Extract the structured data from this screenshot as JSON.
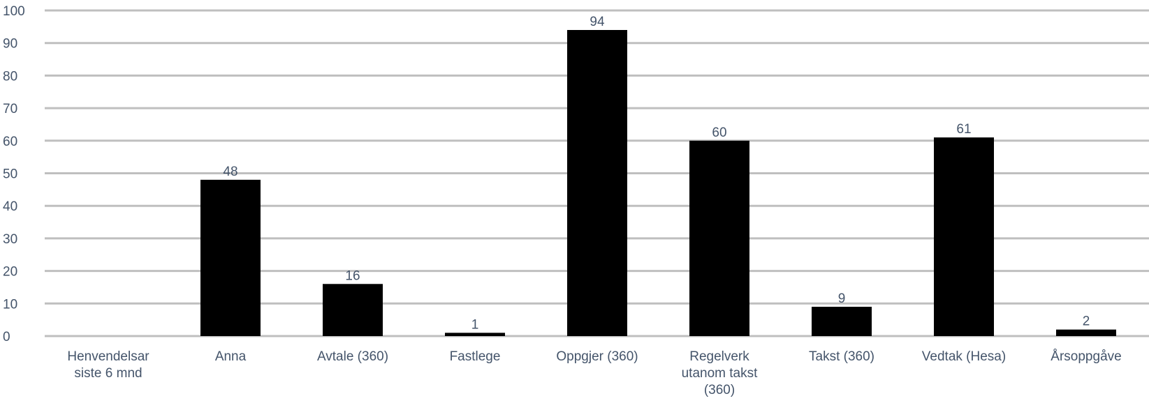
{
  "chart_data": {
    "type": "bar",
    "categories": [
      "Henvendelsar siste 6 mnd",
      "Anna",
      "Avtale (360)",
      "Fastlege",
      "Oppgjer (360)",
      "Regelverk utanom takst (360)",
      "Takst (360)",
      "Vedtak (Hesa)",
      "Årsoppgåve"
    ],
    "category_lines": [
      [
        "Henvendelsar",
        "siste 6 mnd"
      ],
      [
        "Anna"
      ],
      [
        "Avtale (360)"
      ],
      [
        "Fastlege"
      ],
      [
        "Oppgjer (360)"
      ],
      [
        "Regelverk",
        "utanom takst",
        "(360)"
      ],
      [
        "Takst (360)"
      ],
      [
        "Vedtak (Hesa)"
      ],
      [
        "Årsoppgåve"
      ]
    ],
    "values": [
      null,
      48,
      16,
      1,
      94,
      60,
      9,
      61,
      2
    ],
    "data_labels": [
      "",
      "48",
      "16",
      "1",
      "94",
      "60",
      "9",
      "61",
      "2"
    ],
    "title": "",
    "xlabel": "",
    "ylabel": "",
    "ylim": [
      0,
      100
    ],
    "yticks": [
      "0",
      "10",
      "20",
      "30",
      "40",
      "50",
      "60",
      "70",
      "80",
      "90",
      "100"
    ],
    "grid": true,
    "legend": "none",
    "colors": {
      "bar": "#000000",
      "grid": "#bfbfbf",
      "text": "#44546a"
    }
  }
}
